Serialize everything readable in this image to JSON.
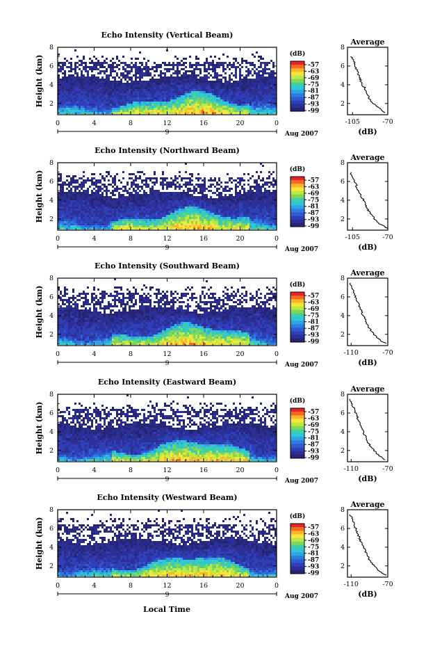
{
  "figure": {
    "bottom_xlabel": "Local Time"
  },
  "colorbar": {
    "unit": "(dB)",
    "levels": [
      "-57",
      "-63",
      "-69",
      "-75",
      "-81",
      "-87",
      "-93",
      "-99"
    ],
    "colors": [
      "#e8232a",
      "#f46a23",
      "#fbb52a",
      "#f4e63a",
      "#bde843",
      "#7fd65a",
      "#3fcfa8",
      "#2ec6d8",
      "#2fa4e3",
      "#2f7ce0",
      "#2f5bd1",
      "#2f3fb8",
      "#2b2f96",
      "#262573"
    ]
  },
  "chart_data": [
    {
      "type": "heatmap",
      "title": "Echo Intensity (Vertical Beam)",
      "ylabel": "Height (km)",
      "x_ticks": [
        "0",
        "4",
        "8",
        "12",
        "16",
        "20",
        "0"
      ],
      "x_sub": "9",
      "date_label": "Aug 2007",
      "y_ticks": [
        "2",
        "4",
        "6",
        "8"
      ],
      "xlim": [
        0,
        24
      ],
      "ylim": [
        0.8,
        8
      ],
      "profile": {
        "title": "Average",
        "xlabel": "(dB)",
        "x_ticks": [
          "-105",
          "-70"
        ],
        "y_ticks": [
          "2",
          "4",
          "6",
          "8"
        ],
        "xlim": [
          -110,
          -70
        ],
        "ylim": [
          0.8,
          8
        ],
        "heights": [
          1.0,
          1.5,
          2.0,
          2.5,
          3.0,
          3.5,
          4.0,
          4.5,
          5.0,
          5.5,
          6.0,
          6.5,
          7.0
        ],
        "values": [
          -72,
          -79,
          -84,
          -88,
          -90,
          -92,
          -95,
          -97,
          -99,
          -101,
          -102,
          -104,
          -106
        ]
      }
    },
    {
      "type": "heatmap",
      "title": "Echo Intensity (Northward Beam)",
      "ylabel": "Height (km)",
      "x_ticks": [
        "0",
        "4",
        "8",
        "12",
        "16",
        "20",
        "0"
      ],
      "x_sub": "9",
      "date_label": "Aug 2007",
      "y_ticks": [
        "2",
        "4",
        "6",
        "8"
      ],
      "xlim": [
        0,
        24
      ],
      "ylim": [
        0.8,
        8
      ],
      "profile": {
        "title": "Average",
        "xlabel": "(dB)",
        "x_ticks": [
          "-105",
          "-70"
        ],
        "y_ticks": [
          "2",
          "4",
          "6",
          "8"
        ],
        "xlim": [
          -110,
          -70
        ],
        "ylim": [
          0.8,
          8
        ],
        "heights": [
          1.0,
          1.5,
          2.0,
          2.5,
          3.0,
          3.5,
          4.0,
          4.5,
          5.0,
          5.5,
          6.0,
          6.5,
          7.0
        ],
        "values": [
          -71,
          -78,
          -83,
          -87,
          -90,
          -92,
          -94,
          -97,
          -99,
          -101,
          -103,
          -105,
          -107
        ]
      }
    },
    {
      "type": "heatmap",
      "title": "Echo Intensity (Southward Beam)",
      "ylabel": "Height (km)",
      "x_ticks": [
        "0",
        "4",
        "8",
        "12",
        "16",
        "20",
        "0"
      ],
      "x_sub": "9",
      "date_label": "Aug 2007",
      "y_ticks": [
        "2",
        "4",
        "6",
        "8"
      ],
      "xlim": [
        0,
        24
      ],
      "ylim": [
        0.8,
        8
      ],
      "profile": {
        "title": "Average",
        "xlabel": "(dB)",
        "x_ticks": [
          "-110",
          "-70"
        ],
        "y_ticks": [
          "2",
          "4",
          "6",
          "8"
        ],
        "xlim": [
          -114,
          -70
        ],
        "ylim": [
          0.8,
          8
        ],
        "heights": [
          1.0,
          1.5,
          2.0,
          2.5,
          3.0,
          3.5,
          4.0,
          4.5,
          5.0,
          5.5,
          6.0,
          6.5,
          7.0,
          7.5
        ],
        "values": [
          -72,
          -80,
          -85,
          -89,
          -92,
          -94,
          -97,
          -99,
          -101,
          -103,
          -105,
          -107,
          -109,
          -111
        ]
      }
    },
    {
      "type": "heatmap",
      "title": "Echo Intensity (Eastward Beam)",
      "ylabel": "Height (km)",
      "x_ticks": [
        "0",
        "4",
        "8",
        "12",
        "16",
        "20",
        "0"
      ],
      "x_sub": "9",
      "date_label": "Aug 2007",
      "y_ticks": [
        "2",
        "4",
        "6",
        "8"
      ],
      "xlim": [
        0,
        24
      ],
      "ylim": [
        0.8,
        8
      ],
      "profile": {
        "title": "Average",
        "xlabel": "(dB)",
        "x_ticks": [
          "-110",
          "-70"
        ],
        "y_ticks": [
          "2",
          "4",
          "6",
          "8"
        ],
        "xlim": [
          -114,
          -70
        ],
        "ylim": [
          0.8,
          8
        ],
        "heights": [
          1.0,
          1.5,
          2.0,
          2.5,
          3.0,
          3.5,
          4.0,
          4.5,
          5.0,
          5.5,
          6.0,
          6.5,
          7.0,
          7.5
        ],
        "values": [
          -73,
          -80,
          -85,
          -89,
          -92,
          -94,
          -97,
          -99,
          -101,
          -103,
          -105,
          -107,
          -109,
          -111
        ]
      }
    },
    {
      "type": "heatmap",
      "title": "Echo Intensity (Westward Beam)",
      "ylabel": "Height (km)",
      "x_ticks": [
        "0",
        "4",
        "8",
        "12",
        "16",
        "20",
        "0"
      ],
      "x_sub": "9",
      "date_label": "Aug 2007",
      "y_ticks": [
        "2",
        "4",
        "6",
        "8"
      ],
      "xlim": [
        0,
        24
      ],
      "ylim": [
        0.8,
        8
      ],
      "profile": {
        "title": "Average",
        "xlabel": "(dB)",
        "x_ticks": [
          "-110",
          "-70"
        ],
        "y_ticks": [
          "2",
          "4",
          "6",
          "8"
        ],
        "xlim": [
          -114,
          -70
        ],
        "ylim": [
          0.8,
          8
        ],
        "heights": [
          1.0,
          1.5,
          2.0,
          2.5,
          3.0,
          3.5,
          4.0,
          4.5,
          5.0,
          5.5,
          6.0,
          6.5,
          7.0,
          7.5
        ],
        "values": [
          -72,
          -80,
          -85,
          -89,
          -92,
          -94,
          -96,
          -99,
          -101,
          -103,
          -105,
          -107,
          -109,
          -111
        ]
      }
    }
  ]
}
